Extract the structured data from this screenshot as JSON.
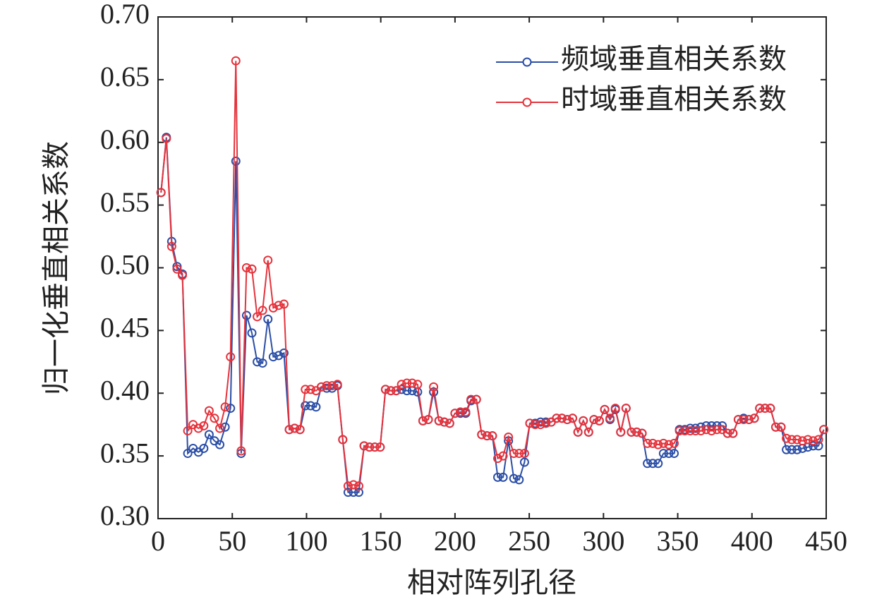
{
  "chart_data": {
    "type": "line",
    "xlabel": "相对阵列孔径",
    "ylabel": "归一化垂直相关系数",
    "xlim": [
      0,
      450
    ],
    "ylim": [
      0.3,
      0.7
    ],
    "xticks": [
      0,
      50,
      100,
      150,
      200,
      250,
      300,
      350,
      400,
      450
    ],
    "yticks": [
      {
        "value": 0.3,
        "label": "0.30"
      },
      0.35,
      {
        "value": 0.4,
        "label": "0.40"
      },
      0.45,
      {
        "value": 0.5,
        "label": "0.50"
      },
      0.55,
      {
        "value": 0.6,
        "label": "0.60"
      },
      0.65,
      {
        "value": 0.7,
        "label": "0.70"
      }
    ],
    "legend": "upper right",
    "grid": false,
    "x": [
      2,
      5.6,
      9.2,
      12.8,
      16.4,
      20,
      23.6,
      27.2,
      30.8,
      34.4,
      38,
      41.6,
      45.2,
      48.8,
      52.4,
      56,
      59.6,
      63.2,
      66.8,
      70.4,
      74,
      77.6,
      81.2,
      84.8,
      88.4,
      92,
      95.6,
      99.2,
      102.8,
      106.4,
      110,
      113.6,
      117.2,
      120.8,
      124.4,
      128,
      131.6,
      135.2,
      138.8,
      142.4,
      146,
      149.6,
      153.2,
      156.8,
      160.4,
      164,
      167.6,
      171.2,
      174.8,
      178.4,
      182,
      185.6,
      189.2,
      192.8,
      196.4,
      200,
      203.6,
      207.2,
      210.8,
      214.4,
      218,
      221.6,
      225.2,
      228.8,
      232.4,
      236,
      239.6,
      243.2,
      246.8,
      250.4,
      254,
      257.6,
      261.2,
      264.8,
      268.4,
      272,
      275.6,
      279.2,
      282.8,
      286.4,
      290,
      293.6,
      297.2,
      300.8,
      304.4,
      308,
      311.6,
      315.2,
      318.8,
      322.4,
      326,
      329.6,
      333.2,
      336.8,
      340.4,
      344,
      347.6,
      351.2,
      354.8,
      358.4,
      362,
      365.6,
      369.2,
      372.8,
      376.4,
      380,
      383.6,
      387.2,
      390.8,
      394.4,
      398,
      401.6,
      405.2,
      408.8,
      412.4,
      416,
      419.6,
      423.2,
      426.8,
      430.4,
      434,
      437.6,
      441.2,
      444.8,
      448.4
    ],
    "series": [
      {
        "name": "频域垂直相关系数",
        "color": "#2b4ea6",
        "values": [
          0.56,
          0.604,
          0.521,
          0.501,
          0.495,
          0.352,
          0.356,
          0.353,
          0.356,
          0.367,
          0.362,
          0.359,
          0.373,
          0.388,
          0.585,
          0.352,
          0.462,
          0.448,
          0.425,
          0.424,
          0.459,
          0.429,
          0.43,
          0.432,
          0.371,
          0.372,
          0.371,
          0.39,
          0.39,
          0.389,
          0.405,
          0.404,
          0.404,
          0.406,
          0.363,
          0.321,
          0.321,
          0.321,
          0.358,
          0.357,
          0.357,
          0.357,
          0.403,
          0.402,
          0.402,
          0.403,
          0.402,
          0.402,
          0.401,
          0.378,
          0.379,
          0.401,
          0.378,
          0.377,
          0.376,
          0.384,
          0.384,
          0.384,
          0.394,
          0.395,
          0.367,
          0.366,
          0.366,
          0.333,
          0.333,
          0.362,
          0.332,
          0.331,
          0.345,
          0.376,
          0.376,
          0.377,
          0.377,
          0.377,
          0.38,
          0.38,
          0.379,
          0.38,
          0.369,
          0.378,
          0.369,
          0.379,
          0.378,
          0.387,
          0.379,
          0.387,
          0.369,
          0.388,
          0.369,
          0.369,
          0.368,
          0.344,
          0.344,
          0.344,
          0.352,
          0.352,
          0.352,
          0.371,
          0.371,
          0.372,
          0.372,
          0.373,
          0.374,
          0.374,
          0.374,
          0.374,
          0.368,
          0.368,
          0.379,
          0.38,
          0.379,
          0.38,
          0.388,
          0.388,
          0.388,
          0.373,
          0.373,
          0.355,
          0.355,
          0.355,
          0.356,
          0.357,
          0.358,
          0.358,
          0.371
        ]
      },
      {
        "name": "时域垂直相关系数",
        "color": "#e5323b",
        "values": [
          0.56,
          0.603,
          0.517,
          0.499,
          0.494,
          0.37,
          0.375,
          0.372,
          0.374,
          0.386,
          0.38,
          0.372,
          0.389,
          0.429,
          0.665,
          0.354,
          0.5,
          0.499,
          0.461,
          0.466,
          0.506,
          0.468,
          0.47,
          0.471,
          0.371,
          0.372,
          0.371,
          0.403,
          0.403,
          0.402,
          0.405,
          0.406,
          0.406,
          0.407,
          0.363,
          0.326,
          0.327,
          0.326,
          0.358,
          0.357,
          0.357,
          0.357,
          0.403,
          0.402,
          0.402,
          0.407,
          0.408,
          0.408,
          0.407,
          0.378,
          0.379,
          0.405,
          0.378,
          0.377,
          0.376,
          0.384,
          0.385,
          0.385,
          0.395,
          0.395,
          0.367,
          0.366,
          0.366,
          0.348,
          0.35,
          0.365,
          0.352,
          0.352,
          0.352,
          0.376,
          0.375,
          0.375,
          0.376,
          0.377,
          0.38,
          0.38,
          0.379,
          0.38,
          0.369,
          0.378,
          0.369,
          0.379,
          0.378,
          0.387,
          0.38,
          0.388,
          0.369,
          0.388,
          0.369,
          0.369,
          0.368,
          0.36,
          0.36,
          0.359,
          0.36,
          0.359,
          0.36,
          0.37,
          0.37,
          0.37,
          0.37,
          0.37,
          0.371,
          0.37,
          0.371,
          0.371,
          0.368,
          0.368,
          0.379,
          0.379,
          0.379,
          0.38,
          0.388,
          0.388,
          0.388,
          0.373,
          0.373,
          0.364,
          0.363,
          0.363,
          0.362,
          0.363,
          0.362,
          0.363,
          0.371
        ]
      }
    ]
  }
}
